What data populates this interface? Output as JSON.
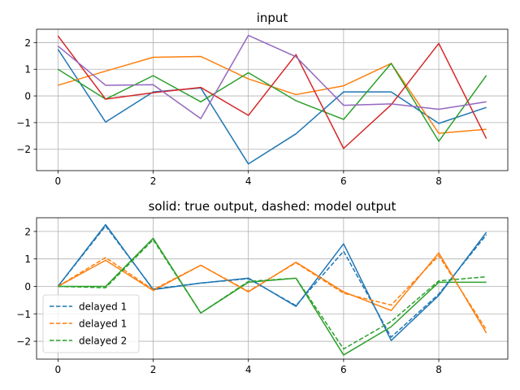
{
  "chart_data": [
    {
      "type": "line",
      "title": "input",
      "xlabel": "",
      "ylabel": "",
      "x": [
        0,
        1,
        2,
        3,
        4,
        5,
        6,
        7,
        8,
        9
      ],
      "xlim": [
        -0.45,
        9.45
      ],
      "ylim": [
        -2.8,
        2.5
      ],
      "xticks": [
        0,
        2,
        4,
        6,
        8
      ],
      "yticks": [
        -2,
        -1,
        0,
        1,
        2
      ],
      "grid": true,
      "legend": null,
      "series": [
        {
          "color": "#1f77b4",
          "style": "solid",
          "values": [
            1.75,
            -0.98,
            0.15,
            0.3,
            -2.55,
            -1.42,
            0.15,
            0.15,
            -1.03,
            -0.43
          ]
        },
        {
          "color": "#ff7f0e",
          "style": "solid",
          "values": [
            0.4,
            0.93,
            1.45,
            1.48,
            0.64,
            0.05,
            0.38,
            1.22,
            -1.4,
            -1.25
          ]
        },
        {
          "color": "#2ca02c",
          "style": "solid",
          "values": [
            1.0,
            -0.12,
            0.76,
            -0.22,
            0.87,
            -0.18,
            -0.88,
            1.22,
            -1.7,
            0.77
          ]
        },
        {
          "color": "#d62728",
          "style": "solid",
          "values": [
            2.25,
            -0.12,
            0.12,
            0.32,
            -0.73,
            1.55,
            -1.97,
            -0.33,
            1.97,
            -1.6
          ]
        },
        {
          "color": "#9467bd",
          "style": "solid",
          "values": [
            1.87,
            0.4,
            0.42,
            -0.85,
            2.27,
            1.47,
            -0.35,
            -0.3,
            -0.5,
            -0.22
          ]
        }
      ]
    },
    {
      "type": "line",
      "title": "solid: true output, dashed: model output",
      "xlabel": "",
      "ylabel": "",
      "x": [
        0,
        1,
        2,
        3,
        4,
        5,
        6,
        7,
        8,
        9
      ],
      "xlim": [
        -0.45,
        9.45
      ],
      "ylim": [
        -2.65,
        2.5
      ],
      "xticks": [
        0,
        2,
        4,
        6,
        8
      ],
      "yticks": [
        -2,
        -1,
        0,
        1,
        2
      ],
      "grid": true,
      "legend": "lower-left",
      "series": [
        {
          "name": "",
          "color": "#1f77b4",
          "style": "solid",
          "values": [
            0.0,
            2.25,
            -0.12,
            0.12,
            0.3,
            -0.73,
            1.55,
            -1.97,
            -0.33,
            1.97
          ]
        },
        {
          "name": "",
          "color": "#ff7f0e",
          "style": "solid",
          "values": [
            0.0,
            0.95,
            -0.15,
            0.77,
            -0.2,
            0.88,
            -0.2,
            -0.88,
            1.22,
            -1.7
          ]
        },
        {
          "name": "",
          "color": "#2ca02c",
          "style": "solid",
          "values": [
            0.0,
            0.0,
            1.75,
            -0.97,
            0.15,
            0.3,
            -2.5,
            -1.47,
            0.15,
            0.15
          ]
        },
        {
          "name": "delayed 1",
          "color": "#1f77b4",
          "style": "dashed",
          "values": [
            0.0,
            2.2,
            -0.1,
            0.12,
            0.28,
            -0.7,
            1.28,
            -1.85,
            -0.28,
            1.88
          ]
        },
        {
          "name": "delayed 1",
          "color": "#ff7f0e",
          "style": "dashed",
          "values": [
            0.0,
            1.05,
            -0.12,
            0.77,
            -0.18,
            0.86,
            -0.25,
            -0.68,
            1.12,
            -1.58
          ]
        },
        {
          "name": "delayed 2",
          "color": "#2ca02c",
          "style": "dashed",
          "values": [
            0.0,
            -0.05,
            1.7,
            -0.97,
            0.18,
            0.3,
            -2.28,
            -1.28,
            0.2,
            0.35
          ]
        }
      ]
    }
  ]
}
